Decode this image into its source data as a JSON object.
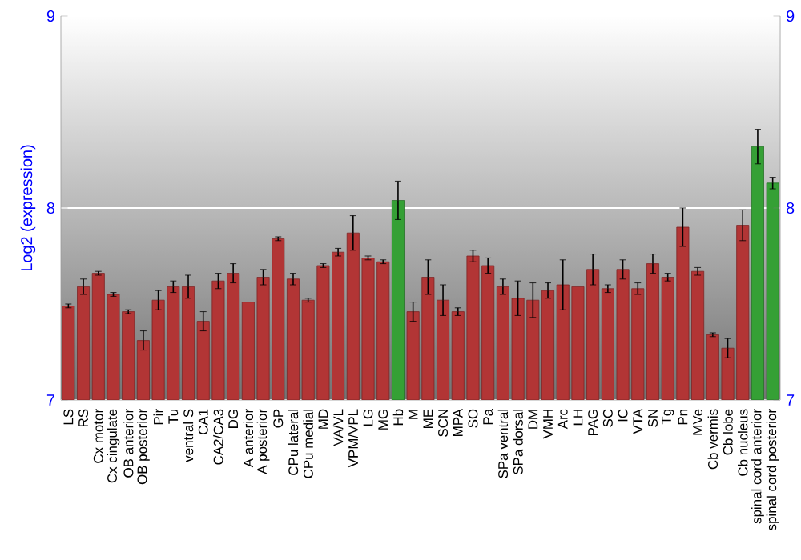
{
  "chart_data": {
    "type": "bar",
    "ylabel": "Log2 (expression)",
    "categories": [
      "LS",
      "RS",
      "Cx motor",
      "Cx cingulate",
      "OB anterior",
      "OB posterior",
      "Pir",
      "Tu",
      "ventral S",
      "CA1",
      "CA2/CA3",
      "DG",
      "A anterior",
      "A posterior",
      "GP",
      "CPu lateral",
      "CPu medial",
      "MD",
      "VA/VL",
      "VPM/VPL",
      "LG",
      "MG",
      "Hb",
      "M",
      "ME",
      "SCN",
      "MPA",
      "SO",
      "Pa",
      "SPa ventral",
      "SPa dorsal",
      "DM",
      "VMH",
      "Arc",
      "LH",
      "PAG",
      "SC",
      "IC",
      "VTA",
      "SN",
      "Tg",
      "Pn",
      "MVe",
      "Cb vermis",
      "Cb lobe",
      "Cb nucleus",
      "spinal cord anterior",
      "spinal cord posterior"
    ],
    "values": [
      7.49,
      7.59,
      7.66,
      7.55,
      7.46,
      7.31,
      7.52,
      7.59,
      7.59,
      7.41,
      7.62,
      7.66,
      7.51,
      7.64,
      7.84,
      7.63,
      7.52,
      7.7,
      7.77,
      7.87,
      7.74,
      7.72,
      8.04,
      7.46,
      7.64,
      7.52,
      7.46,
      7.75,
      7.7,
      7.59,
      7.53,
      7.52,
      7.57,
      7.6,
      7.59,
      7.68,
      7.58,
      7.68,
      7.58,
      7.71,
      7.64,
      7.9,
      7.67,
      7.34,
      7.27,
      7.91,
      8.32,
      8.13
    ],
    "errors": [
      0.01,
      0.04,
      0.01,
      0.01,
      0.01,
      0.05,
      0.05,
      0.03,
      0.06,
      0.05,
      0.04,
      0.05,
      null,
      0.04,
      0.01,
      0.03,
      0.01,
      0.01,
      0.02,
      0.09,
      0.01,
      0.01,
      0.1,
      0.05,
      0.09,
      0.08,
      0.02,
      0.03,
      0.04,
      0.04,
      0.09,
      0.09,
      0.04,
      0.13,
      null,
      0.08,
      0.02,
      0.05,
      0.03,
      0.05,
      0.02,
      0.1,
      0.02,
      0.01,
      0.05,
      0.08,
      0.09,
      0.03
    ],
    "colors": [
      "#b23535",
      "#b23535",
      "#b23535",
      "#b23535",
      "#b23535",
      "#b23535",
      "#b23535",
      "#b23535",
      "#b23535",
      "#b23535",
      "#b23535",
      "#b23535",
      "#b23535",
      "#b23535",
      "#b23535",
      "#b23535",
      "#b23535",
      "#b23535",
      "#b23535",
      "#b23535",
      "#b23535",
      "#b23535",
      "#35a035",
      "#b23535",
      "#b23535",
      "#b23535",
      "#b23535",
      "#b23535",
      "#b23535",
      "#b23535",
      "#b23535",
      "#b23535",
      "#b23535",
      "#b23535",
      "#b23535",
      "#b23535",
      "#b23535",
      "#b23535",
      "#b23535",
      "#b23535",
      "#b23535",
      "#b23535",
      "#b23535",
      "#b23535",
      "#b23535",
      "#b23535",
      "#35a035",
      "#35a035"
    ],
    "ylim": [
      7,
      9
    ],
    "yticks": [
      7,
      8,
      9
    ],
    "y2lim": [
      7,
      9
    ],
    "y2ticks": [
      7,
      8,
      9
    ],
    "grid": "y"
  }
}
